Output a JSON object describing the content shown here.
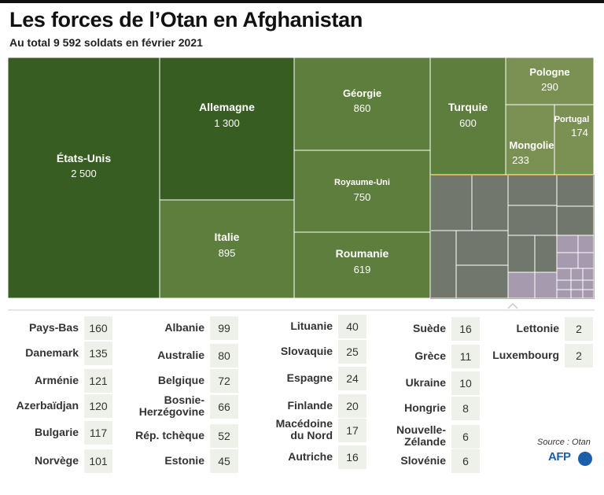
{
  "title": "Les forces de l’Otan en Afghanistan",
  "subtitle": "Au total 9 592 soldats en février 2021",
  "chart_data": {
    "type": "treemap",
    "unit": "soldats",
    "total": 9592,
    "major": [
      {
        "name": "États-Unis",
        "value": 2500,
        "label": "2 500"
      },
      {
        "name": "Allemagne",
        "value": 1300,
        "label": "1 300"
      },
      {
        "name": "Italie",
        "value": 895,
        "label": "895"
      },
      {
        "name": "Géorgie",
        "value": 860,
        "label": "860"
      },
      {
        "name": "Royaume-Uni",
        "value": 750,
        "label": "750"
      },
      {
        "name": "Roumanie",
        "value": 619,
        "label": "619"
      },
      {
        "name": "Turquie",
        "value": 600,
        "label": "600"
      },
      {
        "name": "Pologne",
        "value": 290,
        "label": "290"
      },
      {
        "name": "Mongolie",
        "value": 233,
        "label": "233"
      },
      {
        "name": "Portugal",
        "value": 174,
        "label": "174"
      }
    ],
    "minor": [
      {
        "name": "Pays-Bas",
        "value": 160
      },
      {
        "name": "Danemark",
        "value": 135
      },
      {
        "name": "Arménie",
        "value": 121
      },
      {
        "name": "Azerbaïdjan",
        "value": 120
      },
      {
        "name": "Bulgarie",
        "value": 117
      },
      {
        "name": "Norvège",
        "value": 101
      },
      {
        "name": "Albanie",
        "value": 99
      },
      {
        "name": "Australie",
        "value": 80
      },
      {
        "name": "Belgique",
        "value": 72
      },
      {
        "name": "Bosnie-Herzégovine",
        "value": 66
      },
      {
        "name": "Rép. tchèque",
        "value": 52
      },
      {
        "name": "Estonie",
        "value": 45
      },
      {
        "name": "Lituanie",
        "value": 40
      },
      {
        "name": "Slovaquie",
        "value": 25
      },
      {
        "name": "Espagne",
        "value": 24
      },
      {
        "name": "Finlande",
        "value": 20
      },
      {
        "name": "Macédoine du Nord",
        "value": 17
      },
      {
        "name": "Autriche",
        "value": 16
      },
      {
        "name": "Suède",
        "value": 16
      },
      {
        "name": "Grèce",
        "value": 11
      },
      {
        "name": "Ukraine",
        "value": 10
      },
      {
        "name": "Hongrie",
        "value": 8
      },
      {
        "name": "Nouvelle-Zélande",
        "value": 6
      },
      {
        "name": "Slovénie",
        "value": 6
      },
      {
        "name": "Lettonie",
        "value": 2
      },
      {
        "name": "Luxembourg",
        "value": 2
      }
    ],
    "colors": {
      "dark": "#385d22",
      "mid": "#5d7e3c",
      "light": "#7b9154",
      "gray": "#72776e",
      "purple": "#a69aae",
      "highlight": "#d2b06a"
    }
  },
  "source": "Source : Otan",
  "logo": "AFP"
}
